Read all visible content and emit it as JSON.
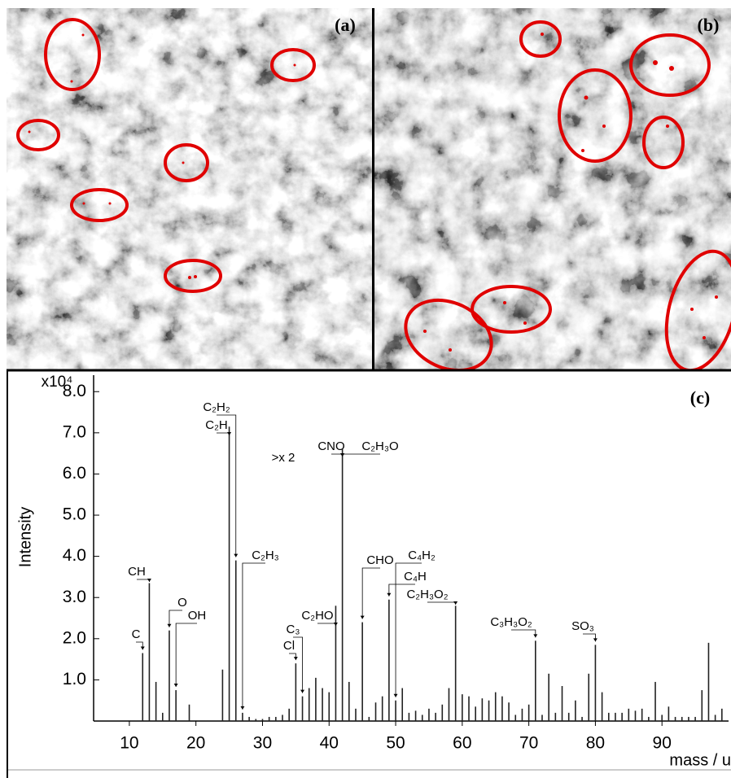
{
  "panels": {
    "a": "(a)",
    "b": "(b)"
  },
  "chart_data": {
    "type": "stem",
    "panel": "(c)",
    "multiplier": "x10⁴",
    "y_label": "Intensity",
    "x_label": "mass / u",
    "color": "#222222",
    "x": [
      12,
      13,
      14,
      15,
      16,
      17,
      19,
      24,
      25,
      26,
      27,
      28,
      29,
      30,
      31,
      32,
      33,
      34,
      35,
      36,
      37,
      38,
      39,
      40,
      41,
      42,
      43,
      44,
      45,
      46,
      47,
      48,
      49,
      50,
      51,
      52,
      53,
      54,
      55,
      56,
      57,
      58,
      59,
      60,
      61,
      62,
      63,
      64,
      65,
      66,
      67,
      68,
      69,
      70,
      71,
      72,
      73,
      74,
      75,
      76,
      77,
      78,
      79,
      80,
      81,
      82,
      83,
      84,
      85,
      86,
      87,
      88,
      89,
      90,
      91,
      92,
      93,
      94,
      95,
      96,
      97,
      98,
      99
    ],
    "values": [
      1.65,
      3.35,
      0.95,
      0.2,
      2.2,
      0.75,
      0.4,
      1.25,
      7.15,
      3.9,
      0.2,
      0.1,
      0.05,
      0.05,
      0.1,
      0.1,
      0.15,
      0.3,
      1.4,
      0.6,
      0.8,
      1.05,
      0.8,
      0.7,
      2.8,
      6.6,
      0.95,
      0.3,
      2.4,
      0.1,
      0.45,
      0.6,
      2.95,
      0.5,
      0.8,
      0.2,
      0.25,
      0.15,
      0.3,
      0.2,
      0.4,
      0.8,
      2.8,
      0.65,
      0.6,
      0.35,
      0.55,
      0.5,
      0.7,
      0.6,
      0.45,
      0.15,
      0.3,
      0.4,
      1.95,
      0.15,
      1.15,
      0.2,
      0.85,
      0.2,
      0.5,
      0.1,
      1.15,
      1.85,
      0.7,
      0.2,
      0.2,
      0.2,
      0.3,
      0.25,
      0.3,
      0.1,
      0.95,
      0.15,
      0.35,
      0.1,
      0.1,
      0.1,
      0.1,
      0.75,
      1.9,
      0.15,
      0.3
    ],
    "xlim": [
      5,
      100
    ],
    "ylim": [
      0,
      8.4
    ],
    "xticks": [
      10,
      20,
      30,
      40,
      50,
      60,
      70,
      80,
      90
    ],
    "yticks": [
      {
        "value": 1,
        "label": "1.0"
      },
      {
        "value": 2,
        "label": "2.0"
      },
      {
        "value": 3,
        "label": "3.0"
      },
      {
        "value": 4,
        "label": "4.0"
      },
      {
        "value": 5,
        "label": "5.0"
      },
      {
        "value": 6,
        "label": "6.0"
      },
      {
        "value": 7,
        "label": "7.0"
      },
      {
        "value": 8,
        "label": "8.0"
      }
    ],
    "annotations": [
      {
        "text": "C",
        "x": 12
      },
      {
        "text": "CH",
        "x": 13
      },
      {
        "text": "O",
        "x": 16
      },
      {
        "text": "OH",
        "x": 17
      },
      {
        "text": "C₂H₂",
        "x": 26
      },
      {
        "text": "C₂H",
        "x": 25
      },
      {
        "text": "C₂H₃",
        "x": 27
      },
      {
        "text": ">x 2",
        "x": 30
      },
      {
        "text": "CNO",
        "x": 42
      },
      {
        "text": "C₂H₃O",
        "x": 42
      },
      {
        "text": "C₂HO",
        "x": 41
      },
      {
        "text": "C₃",
        "x": 36
      },
      {
        "text": "Cl",
        "x": 35
      },
      {
        "text": "CHO",
        "x": 45
      },
      {
        "text": "C₄H₂",
        "x": 50
      },
      {
        "text": "C₄H",
        "x": 49
      },
      {
        "text": "C₂H₃O₂",
        "x": 59
      },
      {
        "text": "C₃H₃O₂",
        "x": 71
      },
      {
        "text": "SO₃",
        "x": 80
      }
    ]
  }
}
